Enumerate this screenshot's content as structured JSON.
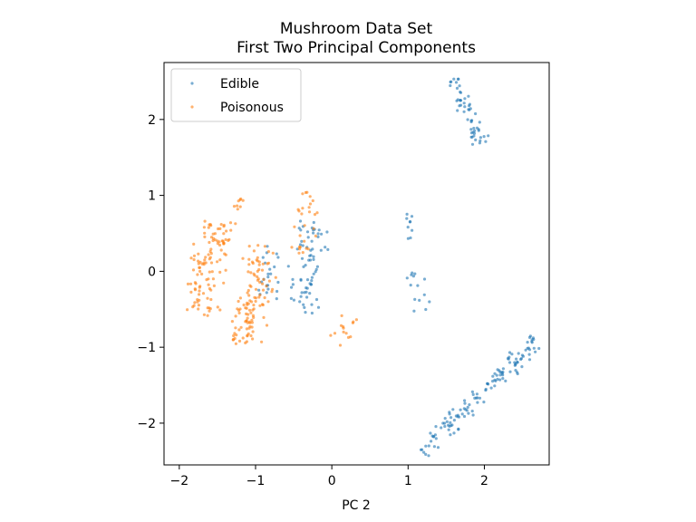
{
  "chart_data": {
    "type": "scatter",
    "title": "Mushroom Data Set",
    "subtitle": "First Two Principal Components",
    "xlabel": "PC 2",
    "ylabel": "",
    "xlim": [
      -2.2,
      2.85
    ],
    "ylim": [
      -2.55,
      2.75
    ],
    "xticks": [
      -2,
      -1,
      0,
      1,
      2
    ],
    "xtick_labels": [
      "−2",
      "−1",
      "0",
      "1",
      "2"
    ],
    "yticks": [
      -2,
      -1,
      0,
      1,
      2
    ],
    "ytick_labels": [
      "−2",
      "−1",
      "0",
      "1",
      "2"
    ],
    "grid": false,
    "legend_position": "top-left",
    "series": [
      {
        "name": "Edible",
        "color": "#1f77b4",
        "clusters": [
          {
            "center": [
              1.93,
              -1.64
            ],
            "direction": [
              0.72,
              0.69
            ],
            "length": 2.1,
            "width": 0.28,
            "n": 130
          },
          {
            "center": [
              1.78,
              2.1
            ],
            "direction": [
              0.4,
              -0.92
            ],
            "length": 0.95,
            "width": 0.22,
            "n": 55
          },
          {
            "center": [
              -0.31,
              0.05
            ],
            "direction": [
              0.15,
              0.99
            ],
            "length": 1.2,
            "width": 0.45,
            "n": 70
          },
          {
            "center": [
              -0.82,
              0.05
            ],
            "direction": [
              0.1,
              0.99
            ],
            "length": 0.8,
            "width": 0.25,
            "n": 22
          },
          {
            "center": [
              1.02,
              0.6
            ],
            "direction": [
              0.0,
              1.0
            ],
            "length": 0.35,
            "width": 0.08,
            "n": 9
          },
          {
            "center": [
              1.15,
              -0.28
            ],
            "direction": [
              0.3,
              -0.95
            ],
            "length": 0.6,
            "width": 0.25,
            "n": 14
          }
        ]
      },
      {
        "name": "Poisonous",
        "color": "#ff7f0e",
        "clusters": [
          {
            "center": [
              -1.62,
              0.05
            ],
            "direction": [
              0.2,
              0.98
            ],
            "length": 1.25,
            "width": 0.5,
            "n": 110
          },
          {
            "center": [
              -1.01,
              -0.28
            ],
            "direction": [
              0.2,
              0.98
            ],
            "length": 1.25,
            "width": 0.45,
            "n": 95
          },
          {
            "center": [
              -1.18,
              -0.7
            ],
            "direction": [
              0.3,
              0.95
            ],
            "length": 0.6,
            "width": 0.3,
            "n": 20
          },
          {
            "center": [
              -0.35,
              0.62
            ],
            "direction": [
              0.1,
              0.99
            ],
            "length": 0.85,
            "width": 0.3,
            "n": 28
          },
          {
            "center": [
              0.15,
              -0.8
            ],
            "direction": [
              0.3,
              0.95
            ],
            "length": 0.45,
            "width": 0.3,
            "n": 14
          },
          {
            "center": [
              -1.27,
              0.78
            ],
            "direction": [
              0.3,
              0.95
            ],
            "length": 0.4,
            "width": 0.15,
            "n": 10
          }
        ]
      }
    ]
  }
}
